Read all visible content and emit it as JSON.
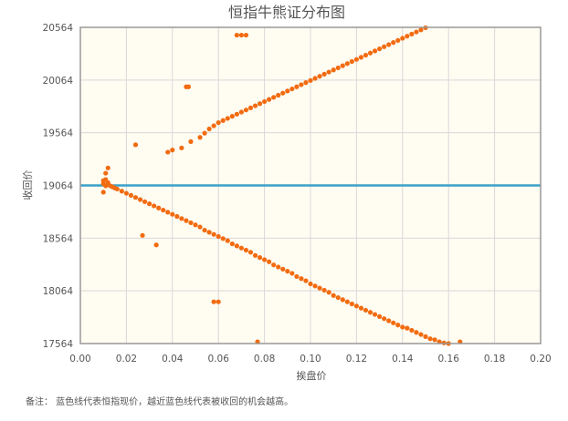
{
  "chart_data": {
    "type": "scatter",
    "title": "恒指牛熊证分布图",
    "xlabel": "挨盘价",
    "ylabel": "收回价",
    "xlim": [
      0,
      0.2
    ],
    "ylim": [
      17564,
      20564
    ],
    "xticks": [
      "0.00",
      "0.02",
      "0.04",
      "0.06",
      "0.08",
      "0.10",
      "0.12",
      "0.14",
      "0.16",
      "0.18",
      "0.20"
    ],
    "yticks": [
      "17564",
      "18064",
      "18564",
      "19064",
      "19564",
      "20064",
      "20564"
    ],
    "reference_line": {
      "y": 19064,
      "color": "#3aa2c8"
    },
    "point_color": "#f26b10",
    "plot_background": "#fffcf2",
    "grid": true,
    "series": [
      {
        "values": [
          [
            0.01,
            19110
          ],
          [
            0.01,
            19080
          ],
          [
            0.011,
            19060
          ],
          [
            0.01,
            19000
          ],
          [
            0.011,
            19120
          ],
          [
            0.012,
            19230
          ],
          [
            0.011,
            19180
          ],
          [
            0.012,
            19090
          ],
          [
            0.013,
            19060
          ],
          [
            0.014,
            19050
          ],
          [
            0.015,
            19040
          ],
          [
            0.016,
            19030
          ],
          [
            0.018,
            19010
          ],
          [
            0.02,
            18990
          ],
          [
            0.022,
            18970
          ],
          [
            0.024,
            18950
          ],
          [
            0.026,
            18930
          ],
          [
            0.028,
            18910
          ],
          [
            0.03,
            18890
          ],
          [
            0.032,
            18870
          ],
          [
            0.034,
            18850
          ],
          [
            0.036,
            18830
          ],
          [
            0.038,
            18810
          ],
          [
            0.04,
            18790
          ],
          [
            0.042,
            18770
          ],
          [
            0.044,
            18750
          ],
          [
            0.046,
            18730
          ],
          [
            0.048,
            18710
          ],
          [
            0.05,
            18690
          ],
          [
            0.052,
            18670
          ],
          [
            0.054,
            18640
          ],
          [
            0.056,
            18620
          ],
          [
            0.058,
            18600
          ],
          [
            0.06,
            18580
          ],
          [
            0.062,
            18560
          ],
          [
            0.064,
            18540
          ],
          [
            0.066,
            18510
          ],
          [
            0.068,
            18490
          ],
          [
            0.07,
            18470
          ],
          [
            0.072,
            18450
          ],
          [
            0.074,
            18430
          ],
          [
            0.076,
            18400
          ],
          [
            0.078,
            18380
          ],
          [
            0.08,
            18360
          ],
          [
            0.082,
            18340
          ],
          [
            0.084,
            18310
          ],
          [
            0.086,
            18290
          ],
          [
            0.088,
            18270
          ],
          [
            0.09,
            18250
          ],
          [
            0.092,
            18230
          ],
          [
            0.094,
            18200
          ],
          [
            0.096,
            18180
          ],
          [
            0.098,
            18160
          ],
          [
            0.1,
            18130
          ],
          [
            0.102,
            18110
          ],
          [
            0.104,
            18090
          ],
          [
            0.106,
            18070
          ],
          [
            0.108,
            18050
          ],
          [
            0.11,
            18020
          ],
          [
            0.112,
            18000
          ],
          [
            0.114,
            17980
          ],
          [
            0.116,
            17960
          ],
          [
            0.118,
            17940
          ],
          [
            0.12,
            17920
          ],
          [
            0.122,
            17900
          ],
          [
            0.124,
            17880
          ],
          [
            0.126,
            17860
          ],
          [
            0.128,
            17840
          ],
          [
            0.13,
            17820
          ],
          [
            0.132,
            17800
          ],
          [
            0.134,
            17780
          ],
          [
            0.136,
            17760
          ],
          [
            0.138,
            17740
          ],
          [
            0.14,
            17720
          ],
          [
            0.142,
            17710
          ],
          [
            0.144,
            17690
          ],
          [
            0.146,
            17670
          ],
          [
            0.148,
            17650
          ],
          [
            0.15,
            17630
          ],
          [
            0.152,
            17610
          ],
          [
            0.154,
            17600
          ],
          [
            0.156,
            17580
          ],
          [
            0.158,
            17570
          ],
          [
            0.16,
            17564
          ],
          [
            0.165,
            17580
          ],
          [
            0.027,
            18590
          ],
          [
            0.033,
            18500
          ],
          [
            0.058,
            17960
          ],
          [
            0.06,
            17960
          ],
          [
            0.077,
            17580
          ],
          [
            0.024,
            19450
          ],
          [
            0.038,
            19380
          ],
          [
            0.04,
            19400
          ],
          [
            0.044,
            19420
          ],
          [
            0.046,
            20000
          ],
          [
            0.047,
            20000
          ],
          [
            0.048,
            19480
          ],
          [
            0.052,
            19520
          ],
          [
            0.054,
            19560
          ],
          [
            0.056,
            19600
          ],
          [
            0.058,
            19630
          ],
          [
            0.06,
            19660
          ],
          [
            0.062,
            19680
          ],
          [
            0.064,
            19700
          ],
          [
            0.066,
            19720
          ],
          [
            0.068,
            19740
          ],
          [
            0.07,
            19760
          ],
          [
            0.072,
            19780
          ],
          [
            0.074,
            19800
          ],
          [
            0.076,
            19820
          ],
          [
            0.078,
            19840
          ],
          [
            0.08,
            19860
          ],
          [
            0.082,
            19880
          ],
          [
            0.084,
            19900
          ],
          [
            0.086,
            19920
          ],
          [
            0.088,
            19940
          ],
          [
            0.09,
            19960
          ],
          [
            0.092,
            19980
          ],
          [
            0.094,
            20000
          ],
          [
            0.096,
            20020
          ],
          [
            0.098,
            20040
          ],
          [
            0.1,
            20060
          ],
          [
            0.102,
            20080
          ],
          [
            0.104,
            20100
          ],
          [
            0.106,
            20120
          ],
          [
            0.108,
            20140
          ],
          [
            0.11,
            20160
          ],
          [
            0.112,
            20180
          ],
          [
            0.114,
            20200
          ],
          [
            0.116,
            20220
          ],
          [
            0.118,
            20240
          ],
          [
            0.12,
            20260
          ],
          [
            0.122,
            20280
          ],
          [
            0.124,
            20300
          ],
          [
            0.126,
            20320
          ],
          [
            0.128,
            20340
          ],
          [
            0.13,
            20360
          ],
          [
            0.132,
            20380
          ],
          [
            0.134,
            20400
          ],
          [
            0.136,
            20420
          ],
          [
            0.138,
            20440
          ],
          [
            0.14,
            20460
          ],
          [
            0.142,
            20480
          ],
          [
            0.144,
            20500
          ],
          [
            0.146,
            20520
          ],
          [
            0.148,
            20540
          ],
          [
            0.15,
            20560
          ],
          [
            0.068,
            20490
          ],
          [
            0.07,
            20490
          ],
          [
            0.072,
            20490
          ]
        ]
      }
    ]
  },
  "footnote": "备注：  蓝色线代表恒指现价，越近蓝色线代表被收回的机会越高。"
}
